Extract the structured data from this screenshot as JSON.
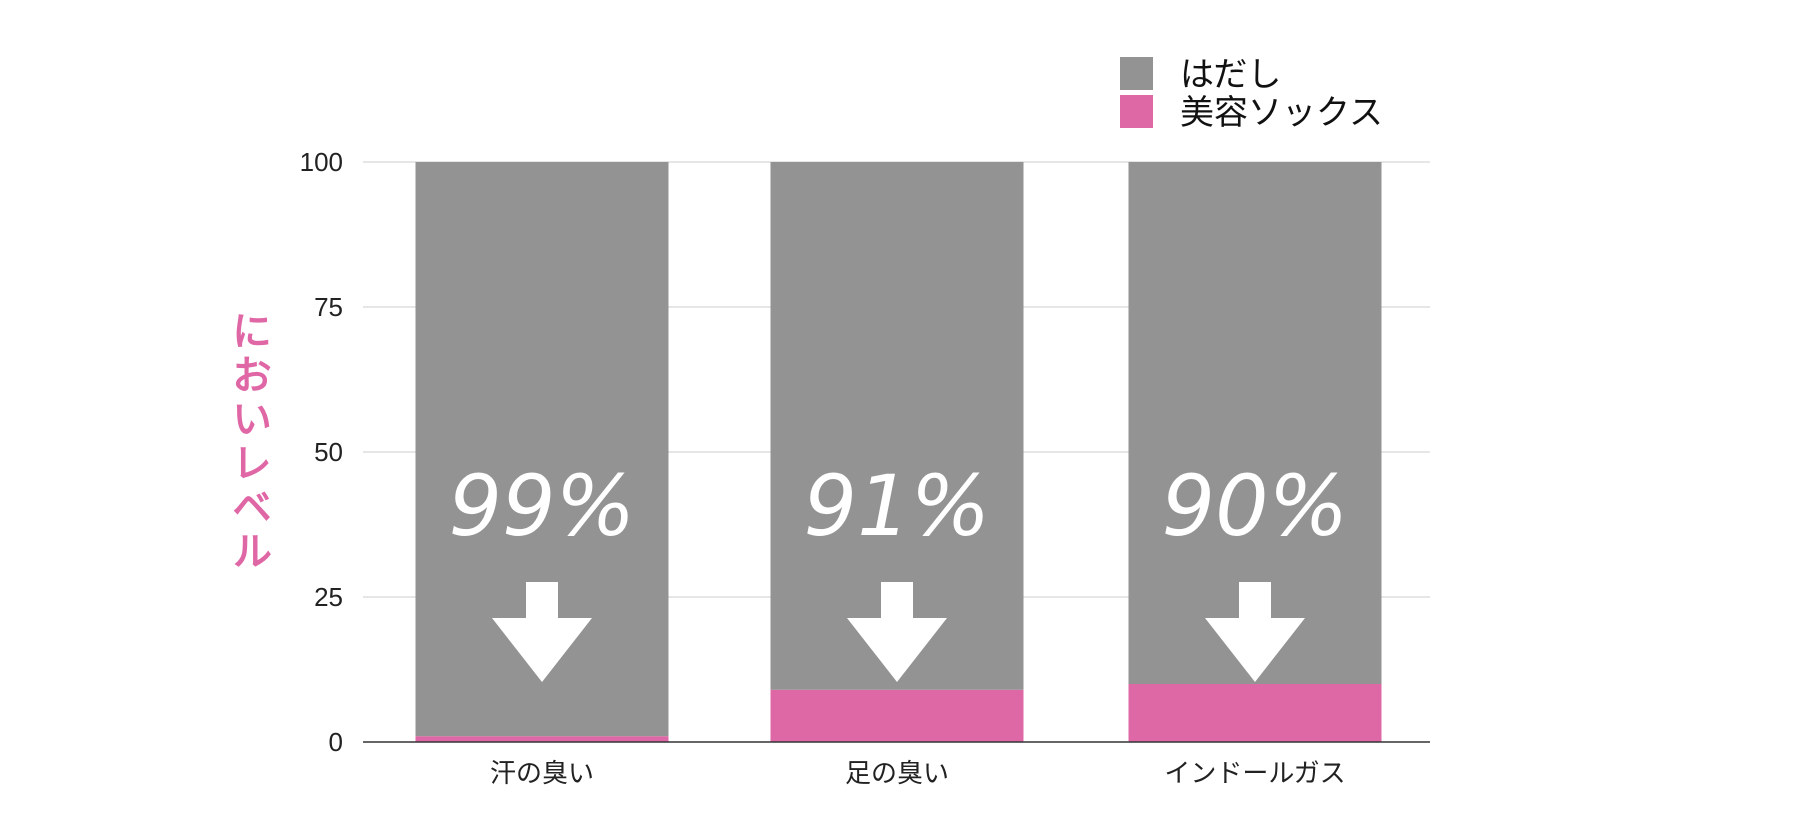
{
  "colors": {
    "bare": "#939393",
    "socks": "#de68a6",
    "grid": "#cccccc",
    "axis": "#333333",
    "ylabel": "#e067a6"
  },
  "chart_data": {
    "type": "bar",
    "stacked": true,
    "categories": [
      "汗の臭い",
      "足の臭い",
      "インドールガス"
    ],
    "series": [
      {
        "name": "美容ソックス",
        "values": [
          1,
          9,
          10
        ],
        "color": "#de68a6"
      },
      {
        "name": "はだし",
        "values": [
          99,
          91,
          90
        ],
        "color": "#939393"
      }
    ],
    "legend": [
      "はだし",
      "美容ソックス"
    ],
    "legend_position": "top-right",
    "ylabel": "においレベル",
    "xlabel": "",
    "ylim": [
      0,
      100
    ],
    "yticks": [
      0,
      25,
      50,
      75,
      100
    ],
    "grid": true,
    "annotations": [
      "99%",
      "91%",
      "90%"
    ],
    "annotation_icon": "down-arrow-icon"
  }
}
